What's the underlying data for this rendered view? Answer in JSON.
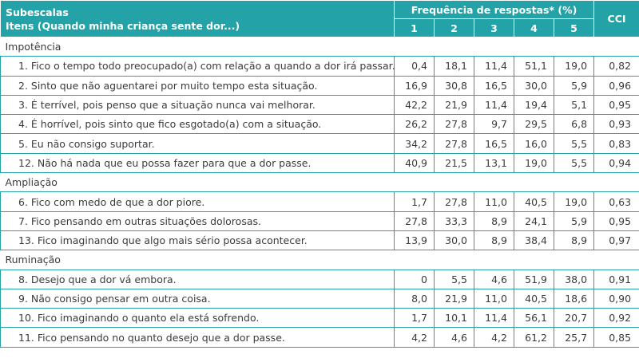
{
  "header": {
    "col1_line1": "Subescalas",
    "col1_line2": "Itens (Quando minha criança sente dor...)",
    "freq_label": "Frequência de respostas* (%)",
    "freq_cols": [
      "1",
      "2",
      "3",
      "4",
      "5"
    ],
    "cci_label": "CCI"
  },
  "sections": [
    {
      "name": "Impotência",
      "rows": [
        {
          "item": "1. Fico o tempo todo preocupado(a) com relação a quando a dor irá passar.",
          "f": [
            "0,4",
            "18,1",
            "11,4",
            "51,1",
            "19,0"
          ],
          "cci": "0,82"
        },
        {
          "item": "2. Sinto que não aguentarei por muito tempo esta situação.",
          "f": [
            "16,9",
            "30,8",
            "16,5",
            "30,0",
            "5,9"
          ],
          "cci": "0,96"
        },
        {
          "item": "3. É terrível, pois penso que a situação nunca vai melhorar.",
          "f": [
            "42,2",
            "21,9",
            "11,4",
            "19,4",
            "5,1"
          ],
          "cci": "0,95"
        },
        {
          "item": "4. É horrível, pois sinto que fico esgotado(a) com a situação.",
          "f": [
            "26,2",
            "27,8",
            "9,7",
            "29,5",
            "6,8"
          ],
          "cci": "0,93"
        },
        {
          "item": "5. Eu não consigo suportar.",
          "f": [
            "34,2",
            "27,8",
            "16,5",
            "16,0",
            "5,5"
          ],
          "cci": "0,83"
        },
        {
          "item": "12. Não há nada que eu possa fazer para que a dor passe.",
          "f": [
            "40,9",
            "21,5",
            "13,1",
            "19,0",
            "5,5"
          ],
          "cci": "0,94"
        }
      ]
    },
    {
      "name": "Ampliação",
      "rows": [
        {
          "item": "6. Fico com medo de que a dor piore.",
          "f": [
            "1,7",
            "27,8",
            "11,0",
            "40,5",
            "19,0"
          ],
          "cci": "0,63"
        },
        {
          "item": "7. Fico pensando em outras situações dolorosas.",
          "f": [
            "27,8",
            "33,3",
            "8,9",
            "24,1",
            "5,9"
          ],
          "cci": "0,95"
        },
        {
          "item": "13. Fico imaginando que algo mais sério possa acontecer.",
          "f": [
            "13,9",
            "30,0",
            "8,9",
            "38,4",
            "8,9"
          ],
          "cci": "0,97"
        }
      ]
    },
    {
      "name": "Ruminação",
      "rows": [
        {
          "item": "8. Desejo que a dor vá embora.",
          "f": [
            "0",
            "5,5",
            "4,6",
            "51,9",
            "38,0"
          ],
          "cci": "0,91"
        },
        {
          "item": "9. Não consigo pensar em outra coisa.",
          "f": [
            "8,0",
            "21,9",
            "11,0",
            "40,5",
            "18,6"
          ],
          "cci": "0,90"
        },
        {
          "item": "10. Fico imaginando o quanto ela está sofrendo.",
          "f": [
            "1,7",
            "10,1",
            "11,4",
            "56,1",
            "20,7"
          ],
          "cci": "0,92"
        },
        {
          "item": "11. Fico pensando no quanto desejo que a dor passe.",
          "f": [
            "4,2",
            "4,6",
            "4,2",
            "61,2",
            "25,7"
          ],
          "cci": "0,85"
        }
      ]
    }
  ],
  "colors": {
    "header_bg": "#23a3a7",
    "header_text": "#ffffff",
    "body_text": "#3b3b3b",
    "rule": "#23a3a7"
  }
}
